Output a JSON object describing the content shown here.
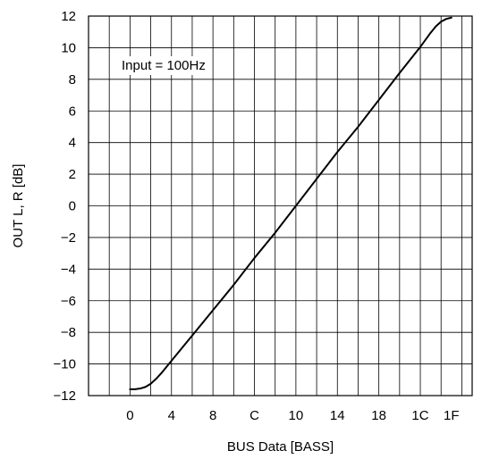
{
  "chart_data": {
    "type": "line",
    "title": "",
    "xlabel": "BUS Data [BASS]",
    "ylabel": "OUT L, R [dB]",
    "annotation": "Input = 100Hz",
    "x_tick_labels": [
      "0",
      "4",
      "8",
      "C",
      "10",
      "14",
      "18",
      "1C",
      "1F"
    ],
    "x_tick_values": [
      0,
      4,
      8,
      12,
      16,
      20,
      24,
      28,
      31
    ],
    "xlim": [
      -4,
      33
    ],
    "ylim": [
      -12,
      12
    ],
    "y_ticks": [
      -12,
      -10,
      -8,
      -6,
      -4,
      -2,
      0,
      2,
      4,
      6,
      8,
      10,
      12
    ],
    "y_tick_labels": [
      "−12",
      "−10",
      "−8",
      "−6",
      "−4",
      "−2",
      "0",
      "2",
      "4",
      "6",
      "8",
      "10",
      "12"
    ],
    "grid": true,
    "series": [
      {
        "color": "#000000",
        "x": [
          0,
          0.5,
          1,
          1.5,
          2,
          2.5,
          3,
          3.5,
          4,
          6,
          8,
          10,
          12,
          14,
          16,
          18,
          20,
          22,
          24,
          26,
          28,
          28.5,
          29,
          29.5,
          30,
          30.5,
          31
        ],
        "y": [
          -11.6,
          -11.6,
          -11.55,
          -11.45,
          -11.25,
          -10.95,
          -10.6,
          -10.2,
          -9.8,
          -8.2,
          -6.6,
          -5.0,
          -3.3,
          -1.7,
          0,
          1.7,
          3.4,
          5.0,
          6.7,
          8.4,
          10.05,
          10.5,
          10.95,
          11.35,
          11.65,
          11.82,
          11.9
        ]
      }
    ]
  }
}
